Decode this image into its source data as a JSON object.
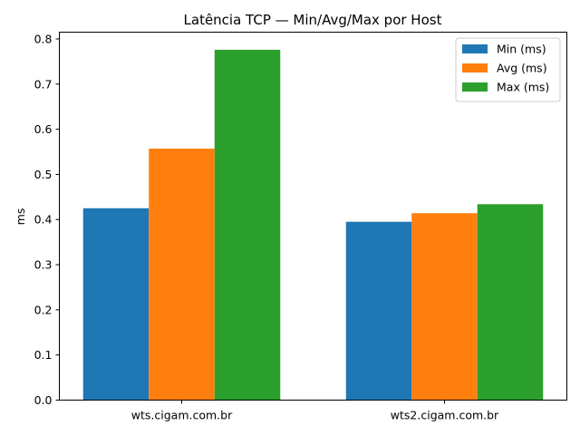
{
  "chart_data": {
    "type": "bar",
    "title": "Latência TCP — Min/Avg/Max por Host",
    "xlabel": "",
    "ylabel": "ms",
    "categories": [
      "wts.cigam.com.br",
      "wts2.cigam.com.br"
    ],
    "series": [
      {
        "name": "Min (ms)",
        "color": "#1f77b4",
        "values": [
          0.425,
          0.395
        ]
      },
      {
        "name": "Avg (ms)",
        "color": "#ff7f0e",
        "values": [
          0.557,
          0.414
        ]
      },
      {
        "name": "Max (ms)",
        "color": "#2ca02c",
        "values": [
          0.776,
          0.434
        ]
      }
    ],
    "ylim": [
      0,
      0.815
    ],
    "yticks": [
      "0.0",
      "0.1",
      "0.2",
      "0.3",
      "0.4",
      "0.5",
      "0.6",
      "0.7",
      "0.8"
    ],
    "grid": false,
    "legend_position": "top-right"
  }
}
